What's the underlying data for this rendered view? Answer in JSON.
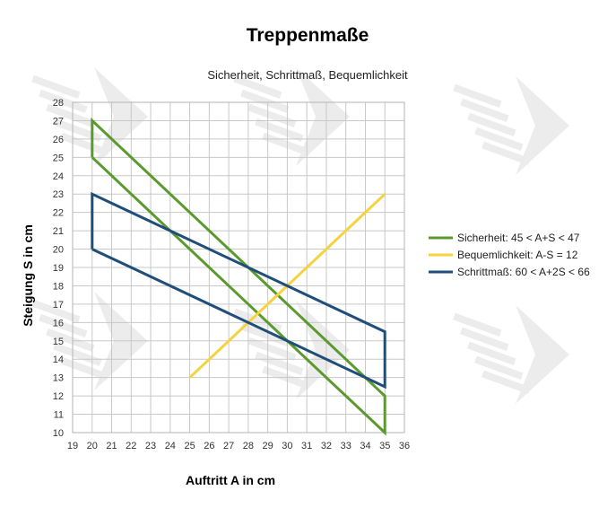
{
  "chart_data": {
    "type": "line",
    "title": "Treppenmaße",
    "subtitle": "Sicherheit, Schrittmaß, Bequemlichkeit",
    "xlabel": "Auftritt A in cm",
    "ylabel": "Steigung S in cm",
    "xlim": [
      19,
      36
    ],
    "ylim": [
      10,
      28
    ],
    "xticks": [
      "19",
      "20",
      "21",
      "22",
      "23",
      "24",
      "25",
      "26",
      "27",
      "28",
      "29",
      "30",
      "31",
      "32",
      "33",
      "34",
      "35",
      "36"
    ],
    "yticks": [
      "10",
      "11",
      "12",
      "13",
      "14",
      "15",
      "16",
      "17",
      "18",
      "19",
      "20",
      "21",
      "22",
      "23",
      "24",
      "25",
      "26",
      "27",
      "28"
    ],
    "grid": true,
    "legend_position": "right",
    "series": [
      {
        "name": "Sicherheit: 45 < A+S < 47",
        "color": "#5b9a2f",
        "points": [
          [
            20,
            25
          ],
          [
            20,
            27
          ],
          [
            35,
            12
          ],
          [
            35,
            10
          ],
          [
            20,
            25
          ]
        ]
      },
      {
        "name": "Bequemlichkeit: A-S = 12",
        "color": "#f5d33f",
        "points": [
          [
            25,
            13
          ],
          [
            35,
            23
          ]
        ]
      },
      {
        "name": "Schrittmaß: 60 < A+2S < 66",
        "color": "#1f4e79",
        "points": [
          [
            20,
            20
          ],
          [
            20,
            23
          ],
          [
            35,
            15.5
          ],
          [
            35,
            12.5
          ],
          [
            20,
            20
          ]
        ]
      }
    ]
  }
}
